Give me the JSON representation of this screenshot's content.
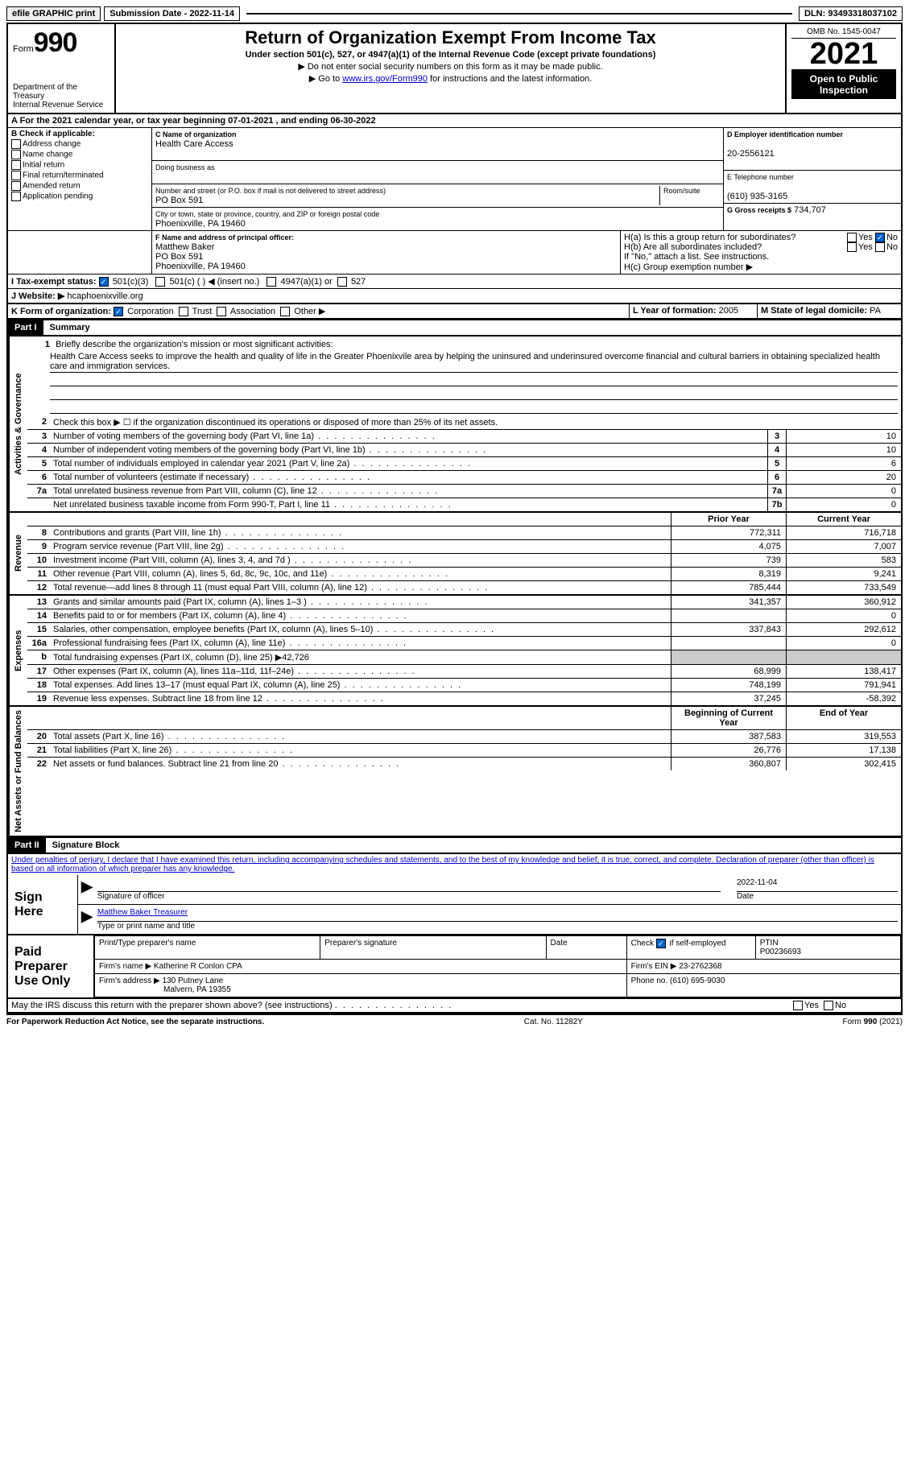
{
  "topbar": {
    "efile_label": "efile GRAPHIC print",
    "submission_label": "Submission Date - 2022-11-14",
    "dln_label": "DLN: 93493318037102"
  },
  "header": {
    "form_prefix": "Form",
    "form_no": "990",
    "dept": "Department of the Treasury",
    "irs": "Internal Revenue Service",
    "title": "Return of Organization Exempt From Income Tax",
    "subtitle": "Under section 501(c), 527, or 4947(a)(1) of the Internal Revenue Code (except private foundations)",
    "note1": "▶ Do not enter social security numbers on this form as it may be made public.",
    "note2_prefix": "▶ Go to ",
    "note2_link": "www.irs.gov/Form990",
    "note2_suffix": " for instructions and the latest information.",
    "omb": "OMB No. 1545-0047",
    "year": "2021",
    "public": "Open to Public Inspection"
  },
  "lineA": "A   For the 2021 calendar year, or tax year beginning 07-01-2021    , and ending 06-30-2022",
  "boxB": {
    "label": "B Check if applicable:",
    "opts": [
      "Address change",
      "Name change",
      "Initial return",
      "Final return/terminated",
      "Amended return",
      "Application pending"
    ]
  },
  "boxC": {
    "name_label": "C Name of organization",
    "name": "Health Care Access",
    "dba_label": "Doing business as",
    "street_label": "Number and street (or P.O. box if mail is not delivered to street address)",
    "room_label": "Room/suite",
    "street": "PO Box 591",
    "city_label": "City or town, state or province, country, and ZIP or foreign postal code",
    "city": "Phoenixville, PA  19460"
  },
  "boxD": {
    "label": "D Employer identification number",
    "value": "20-2556121"
  },
  "boxE": {
    "label": "E Telephone number",
    "value": "(610) 935-3165"
  },
  "boxG": {
    "label": "G Gross receipts $",
    "value": "734,707"
  },
  "boxF": {
    "label": "F  Name and address of principal officer:",
    "name": "Matthew Baker",
    "street": "PO Box 591",
    "city": "Phoenixville, PA  19460"
  },
  "boxH": {
    "ha": "H(a)  Is this a group return for subordinates?",
    "hb": "H(b)  Are all subordinates included?",
    "hnote": "If \"No,\" attach a list. See instructions.",
    "hc": "H(c)  Group exemption number ▶",
    "yes": "Yes",
    "no": "No"
  },
  "lineI": {
    "label": "I    Tax-exempt status:",
    "opts": [
      "501(c)(3)",
      "501(c) (  ) ◀ (insert no.)",
      "4947(a)(1) or",
      "527"
    ]
  },
  "lineJ": {
    "label": "J   Website: ▶",
    "value": "hcaphoenixville.org"
  },
  "lineK": {
    "label": "K Form of organization:",
    "opts": [
      "Corporation",
      "Trust",
      "Association",
      "Other ▶"
    ]
  },
  "lineL": {
    "label": "L Year of formation:",
    "value": "2005"
  },
  "lineM": {
    "label": "M State of legal domicile:",
    "value": "PA"
  },
  "part1": {
    "bar": "Part I",
    "title": "Summary"
  },
  "summary": {
    "l1_label": "Briefly describe the organization's mission or most significant activities:",
    "l1_text": "Health Care Access seeks to improve the health and quality of life in the Greater Phoenixvile area by helping the uninsured and underinsured overcome financial and cultural barriers in obtaining specialized health care and immigration services.",
    "l2": "Check this box ▶ ☐  if the organization discontinued its operations or disposed of more than 25% of its net assets.",
    "rows_ag": [
      {
        "n": "3",
        "d": "Number of voting members of the governing body (Part VI, line 1a)",
        "b": "3",
        "v": "10"
      },
      {
        "n": "4",
        "d": "Number of independent voting members of the governing body (Part VI, line 1b)",
        "b": "4",
        "v": "10"
      },
      {
        "n": "5",
        "d": "Total number of individuals employed in calendar year 2021 (Part V, line 2a)",
        "b": "5",
        "v": "6"
      },
      {
        "n": "6",
        "d": "Total number of volunteers (estimate if necessary)",
        "b": "6",
        "v": "20"
      },
      {
        "n": "7a",
        "d": "Total unrelated business revenue from Part VIII, column (C), line 12",
        "b": "7a",
        "v": "0"
      },
      {
        "n": "",
        "d": "Net unrelated business taxable income from Form 990-T, Part I, line 11",
        "b": "7b",
        "v": "0"
      }
    ],
    "col_prior": "Prior Year",
    "col_current": "Current Year",
    "rows_rev": [
      {
        "n": "8",
        "d": "Contributions and grants (Part VIII, line 1h)",
        "p": "772,311",
        "c": "716,718"
      },
      {
        "n": "9",
        "d": "Program service revenue (Part VIII, line 2g)",
        "p": "4,075",
        "c": "7,007"
      },
      {
        "n": "10",
        "d": "Investment income (Part VIII, column (A), lines 3, 4, and 7d )",
        "p": "739",
        "c": "583"
      },
      {
        "n": "11",
        "d": "Other revenue (Part VIII, column (A), lines 5, 6d, 8c, 9c, 10c, and 11e)",
        "p": "8,319",
        "c": "9,241"
      },
      {
        "n": "12",
        "d": "Total revenue—add lines 8 through 11 (must equal Part VIII, column (A), line 12)",
        "p": "785,444",
        "c": "733,549"
      }
    ],
    "rows_exp": [
      {
        "n": "13",
        "d": "Grants and similar amounts paid (Part IX, column (A), lines 1–3 )",
        "p": "341,357",
        "c": "360,912"
      },
      {
        "n": "14",
        "d": "Benefits paid to or for members (Part IX, column (A), line 4)",
        "p": "",
        "c": "0"
      },
      {
        "n": "15",
        "d": "Salaries, other compensation, employee benefits (Part IX, column (A), lines 5–10)",
        "p": "337,843",
        "c": "292,612"
      },
      {
        "n": "16a",
        "d": "Professional fundraising fees (Part IX, column (A), line 11e)",
        "p": "",
        "c": "0"
      },
      {
        "n": "b",
        "d": "Total fundraising expenses (Part IX, column (D), line 25) ▶42,726",
        "p": "grey",
        "c": "grey"
      },
      {
        "n": "17",
        "d": "Other expenses (Part IX, column (A), lines 11a–11d, 11f–24e)",
        "p": "68,999",
        "c": "138,417"
      },
      {
        "n": "18",
        "d": "Total expenses. Add lines 13–17 (must equal Part IX, column (A), line 25)",
        "p": "748,199",
        "c": "791,941"
      },
      {
        "n": "19",
        "d": "Revenue less expenses. Subtract line 18 from line 12",
        "p": "37,245",
        "c": "-58,392"
      }
    ],
    "col_begin": "Beginning of Current Year",
    "col_end": "End of Year",
    "rows_net": [
      {
        "n": "20",
        "d": "Total assets (Part X, line 16)",
        "p": "387,583",
        "c": "319,553"
      },
      {
        "n": "21",
        "d": "Total liabilities (Part X, line 26)",
        "p": "26,776",
        "c": "17,138"
      },
      {
        "n": "22",
        "d": "Net assets or fund balances. Subtract line 21 from line 20",
        "p": "360,807",
        "c": "302,415"
      }
    ],
    "side_ag": "Activities & Governance",
    "side_rev": "Revenue",
    "side_exp": "Expenses",
    "side_net": "Net Assets or Fund Balances"
  },
  "part2": {
    "bar": "Part II",
    "title": "Signature Block"
  },
  "sigtext": "Under penalties of perjury, I declare that I have examined this return, including accompanying schedules and statements, and to the best of my knowledge and belief, it is true, correct, and complete. Declaration of preparer (other than officer) is based on all information of which preparer has any knowledge.",
  "sign": {
    "label": "Sign Here",
    "sig_officer": "Signature of officer",
    "date": "2022-11-04",
    "date_label": "Date",
    "name": "Matthew Baker  Treasurer",
    "name_label": "Type or print name and title"
  },
  "prep": {
    "label": "Paid Preparer Use Only",
    "h1": "Print/Type preparer's name",
    "h2": "Preparer's signature",
    "h3": "Date",
    "h4_a": "Check",
    "h4_b": "if self-employed",
    "h5": "PTIN",
    "ptin": "P00236693",
    "firm_name_l": "Firm's name      ▶",
    "firm_name": "Katherine R Conlon CPA",
    "firm_ein_l": "Firm's EIN ▶",
    "firm_ein": "23-2762368",
    "firm_addr_l": "Firm's address  ▶",
    "firm_addr1": "130 Putney Lane",
    "firm_addr2": "Malvern, PA  19355",
    "phone_l": "Phone no.",
    "phone": "(610) 695-9030"
  },
  "discuss": "May the IRS discuss this return with the preparer shown above? (see instructions)",
  "footer": {
    "left": "For Paperwork Reduction Act Notice, see the separate instructions.",
    "mid": "Cat. No. 11282Y",
    "right": "Form 990 (2021)"
  }
}
